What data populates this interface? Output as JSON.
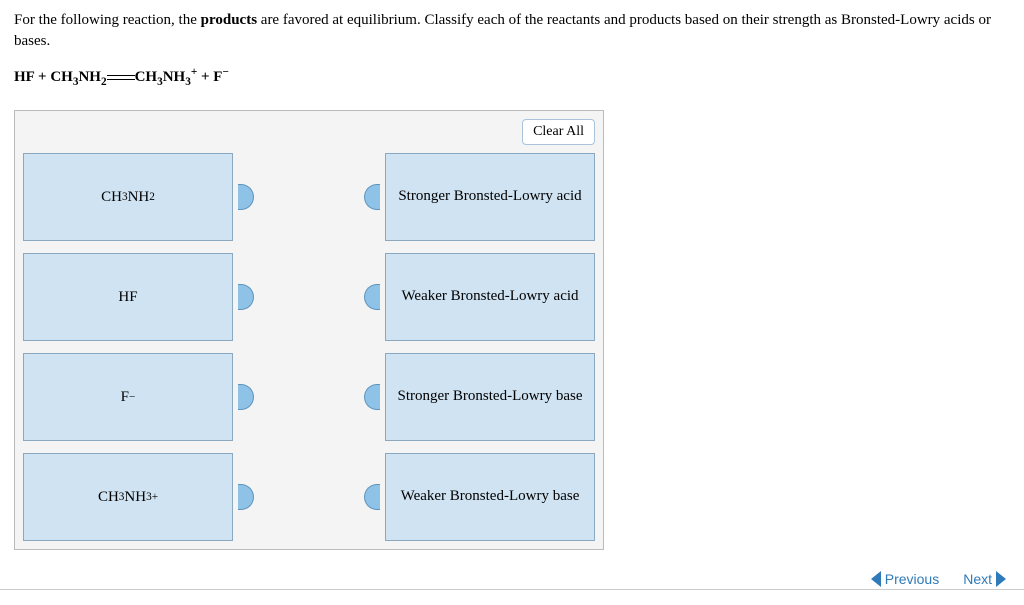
{
  "question": {
    "prefix": "For the following reaction, the ",
    "bold": "products",
    "suffix": " are favored at equilibrium. Classify each of the reactants and products based on their strength as Bronsted-Lowry acids or bases."
  },
  "equation": {
    "html": "HF + CH<sub>3</sub>NH<sub>2</sub><span class=\"eq-arrow\"></span>CH<sub>3</sub>NH<sub>3</sub><sup>+</sup> + F<sup>−</sup>"
  },
  "panel": {
    "clear_label": "Clear All",
    "left_tiles": [
      {
        "html": "CH<sub>3</sub>NH<sub>2</sub>",
        "name": "tile-ch3nh2"
      },
      {
        "html": "HF",
        "name": "tile-hf"
      },
      {
        "html": "F<sup>−</sup>",
        "name": "tile-f-minus"
      },
      {
        "html": "CH<sub>3</sub>NH<sub>3</sub><sup>+</sup>",
        "name": "tile-ch3nh3-plus"
      }
    ],
    "right_tiles": [
      {
        "text": "Stronger Bronsted-Lowry acid",
        "name": "tile-stronger-acid"
      },
      {
        "text": "Weaker Bronsted-Lowry acid",
        "name": "tile-weaker-acid"
      },
      {
        "text": "Stronger Bronsted-Lowry base",
        "name": "tile-stronger-base"
      },
      {
        "text": "Weaker Bronsted-Lowry base",
        "name": "tile-weaker-base"
      }
    ]
  },
  "nav": {
    "previous": "Previous",
    "next": "Next"
  },
  "colors": {
    "tile_bg": "#cfe3f2",
    "tile_border": "#8aa8c0",
    "panel_bg": "#f4f4f4",
    "link": "#2f7ab8"
  }
}
